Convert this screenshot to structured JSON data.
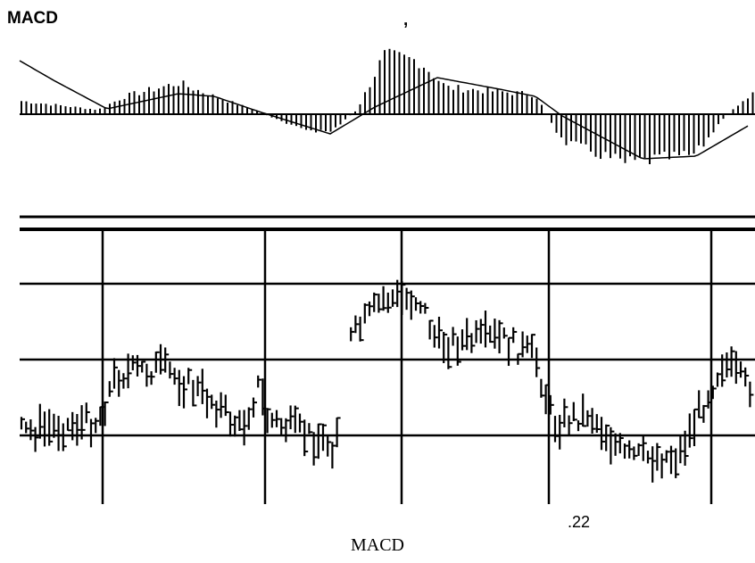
{
  "header": {
    "title": "MACD",
    "mark": ","
  },
  "caption": {
    "number": ".22",
    "label": "MACD"
  }
}
